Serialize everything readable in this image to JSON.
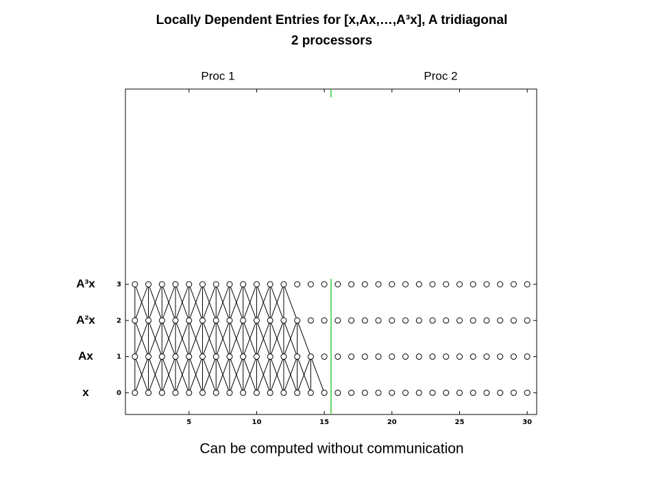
{
  "chart_data": {
    "type": "dependency",
    "title": "Locally Dependent Entries for [x,Ax,…,A³x], A tridiagonal",
    "subtitle": "2 processors",
    "caption": "Can be computed without communication",
    "x": [
      1,
      2,
      3,
      4,
      5,
      6,
      7,
      8,
      9,
      10,
      11,
      12,
      13,
      14,
      15,
      16,
      17,
      18,
      19,
      20,
      21,
      22,
      23,
      24,
      25,
      26,
      27,
      28,
      29,
      30
    ],
    "levels": [
      {
        "label": "x",
        "y": 0,
        "local_count": 15
      },
      {
        "label": "Ax",
        "y": 1,
        "local_count": 14
      },
      {
        "label": "A²x",
        "y": 2,
        "local_count": 13
      },
      {
        "label": "A³x",
        "y": 3,
        "local_count": 12
      }
    ],
    "processors": [
      {
        "name": "Proc 1"
      },
      {
        "name": "Proc 2"
      }
    ],
    "partition": 15.5,
    "partition_color": "#33cc33",
    "xlim": [
      0.3,
      30.7
    ],
    "ylim": [
      -0.6,
      8.4
    ],
    "xticks": [
      5,
      10,
      15,
      20,
      25,
      30
    ],
    "yticks": [
      0,
      1,
      2,
      3
    ]
  }
}
